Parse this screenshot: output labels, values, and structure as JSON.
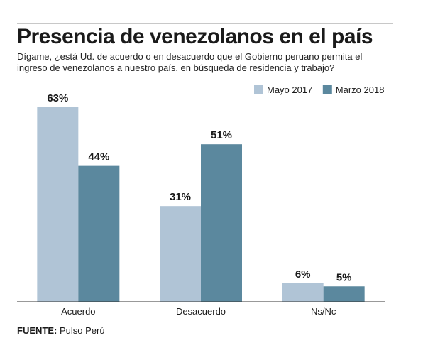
{
  "title": "Presencia de venezolanos en el país",
  "subtitle": "Dígame, ¿está Ud. de acuerdo o en desacuerdo que el Gobierno peruano permita el ingreso de venezolanos a nuestro país, en búsqueda de residencia y trabajo?",
  "source": {
    "label": "FUENTE:",
    "text": "Pulso Perú"
  },
  "chart_data": {
    "type": "bar",
    "categories": [
      "Acuerdo",
      "Desacuerdo",
      "Ns/Nc"
    ],
    "series": [
      {
        "name": "Mayo 2017",
        "color": "#b0c4d6",
        "values": [
          63,
          31,
          6
        ],
        "labels": [
          "63%",
          "31%",
          "6%"
        ]
      },
      {
        "name": "Marzo 2018",
        "color": "#5b889e",
        "values": [
          44,
          51,
          5
        ],
        "labels": [
          "44%",
          "51%",
          "5%"
        ]
      }
    ],
    "ylim": [
      0,
      63
    ],
    "legend": "top-right",
    "grid": false
  }
}
